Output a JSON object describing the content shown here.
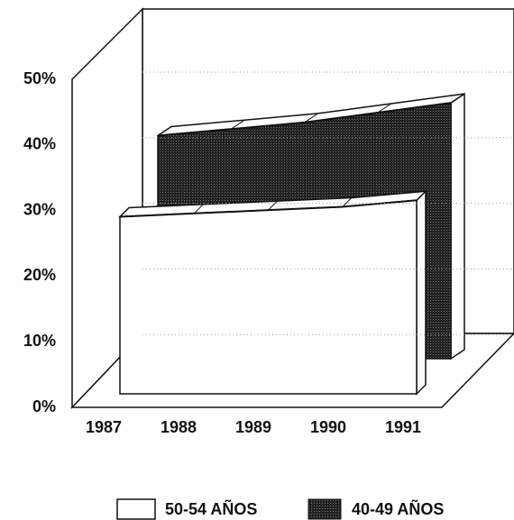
{
  "chart_data": {
    "type": "area3d",
    "categories": [
      "1987",
      "1988",
      "1989",
      "1990",
      "1991"
    ],
    "series": [
      {
        "name": "50-54 AÑOS",
        "color": "#ffffff",
        "values": [
          27,
          27.5,
          28,
          28.5,
          29.5
        ]
      },
      {
        "name": "40-49 AÑOS",
        "color": "#2b2b2b",
        "values": [
          34,
          35,
          36,
          37.5,
          39
        ]
      }
    ],
    "ylim": [
      0,
      50
    ],
    "yticks": [
      {
        "value": 0,
        "label": "0%"
      },
      {
        "value": 10,
        "label": "10%"
      },
      {
        "value": 20,
        "label": "20%"
      },
      {
        "value": 30,
        "label": "30%"
      },
      {
        "value": 40,
        "label": "40%"
      },
      {
        "value": 50,
        "label": "50%"
      }
    ],
    "grid": true
  }
}
